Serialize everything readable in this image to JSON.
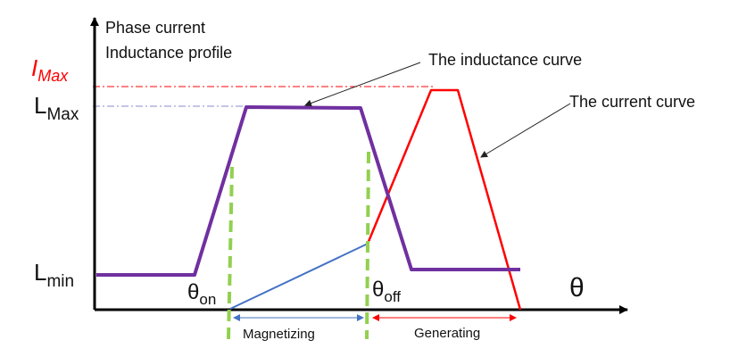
{
  "axis_title_line1": "Phase current",
  "axis_title_line2": "Inductance profile",
  "imax_main": "I",
  "imax_sub": "Max",
  "lmax_main": "L",
  "lmax_sub": "Max",
  "lmin_main": "L",
  "lmin_sub": "min",
  "theta_axis": "θ",
  "theta_on_main": "θ",
  "theta_on_sub": "on",
  "theta_off_main": "θ",
  "theta_off_sub": "off",
  "inductance_callout": "The inductance curve",
  "current_callout": "The current curve",
  "magnetizing_label": "Magnetizing",
  "generating_label": "Generating",
  "colors": {
    "inductance": "#7030a0",
    "current": "#ff0000",
    "magnetizing_current": "#4472c4",
    "switch_lines": "#92d050",
    "imax_ref": "#ff0000",
    "lmax_ref": "#8a8ad0",
    "axes": "#000000"
  }
}
